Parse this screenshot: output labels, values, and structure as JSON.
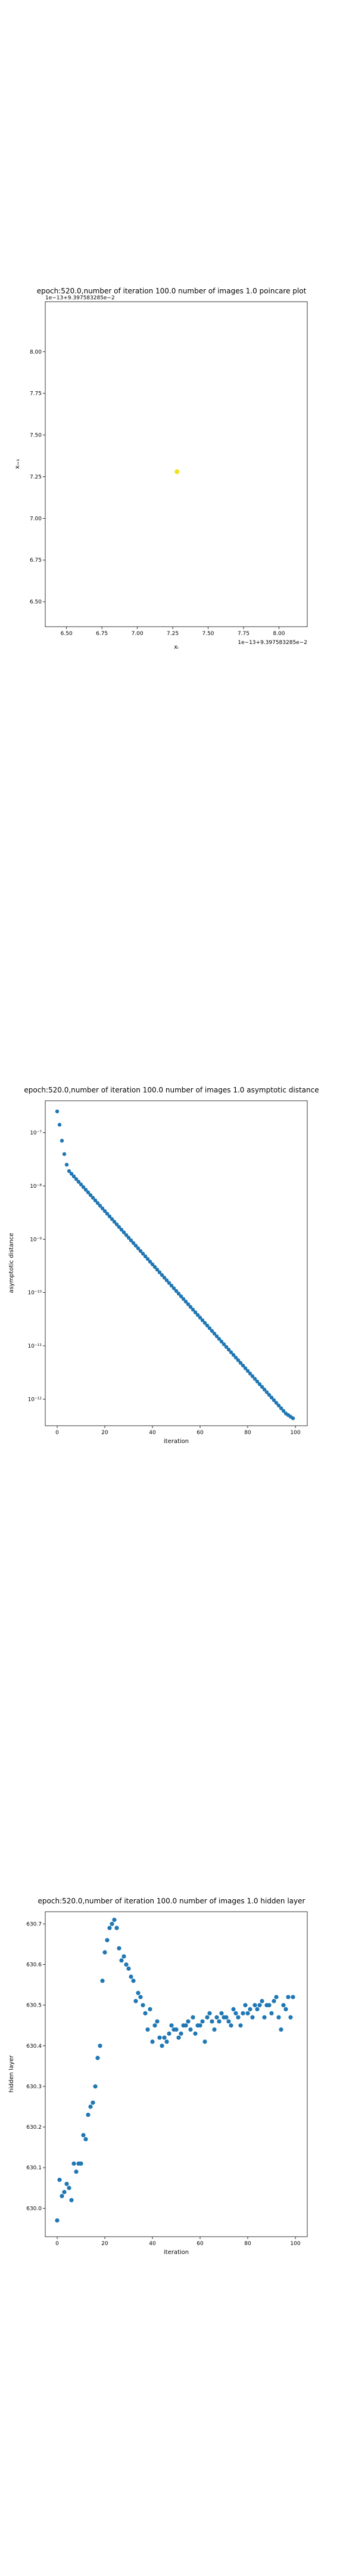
{
  "colors": {
    "scatter": "#1f77b4",
    "poincare_point": "#f2e01e",
    "axes": "#000000",
    "background": "#ffffff"
  },
  "chart_data": [
    {
      "type": "scatter",
      "title": "epoch:520.0,number of iteration 100.0 number of images 1.0 poincare plot",
      "xlabel": "xᵢ",
      "ylabel": "xᵢ₊₁",
      "x_offset_label": "1e−13+9.397583285e−2",
      "y_offset_label": "1e−13+9.397583285e−2",
      "xlim": [
        6.35,
        8.2
      ],
      "ylim": [
        6.35,
        8.3
      ],
      "xticks": [
        6.5,
        6.75,
        7.0,
        7.25,
        7.5,
        7.75,
        8.0
      ],
      "xtick_labels": [
        "6.50",
        "6.75",
        "7.00",
        "7.25",
        "7.50",
        "7.75",
        "8.00"
      ],
      "yticks": [
        6.5,
        6.75,
        7.0,
        7.25,
        7.5,
        7.75,
        8.0
      ],
      "ytick_labels": [
        "6.50",
        "6.75",
        "7.00",
        "7.25",
        "7.50",
        "7.75",
        "8.00"
      ],
      "points": [
        {
          "x": 7.28,
          "y": 7.28
        }
      ]
    },
    {
      "type": "scatter",
      "title": "epoch:520.0,number of iteration 100.0  number of images 1.0 asymptotic distance",
      "xlabel": "iteration",
      "ylabel": "asymptotic distance",
      "yscale": "log",
      "xlim": [
        -5,
        105
      ],
      "ylim_log10": [
        -12.5,
        -6.4
      ],
      "xticks": [
        0,
        20,
        40,
        60,
        80,
        100
      ],
      "xtick_labels": [
        "0",
        "20",
        "40",
        "60",
        "80",
        "100"
      ],
      "yticks_log10": [
        -7,
        -8,
        -9,
        -10,
        -11,
        -12
      ],
      "ytick_labels": [
        "10⁻⁷",
        "10⁻⁸",
        "10⁻⁹",
        "10⁻¹⁰",
        "10⁻¹¹",
        "10⁻¹²"
      ],
      "x": [
        0,
        1,
        2,
        3,
        4,
        5,
        6,
        7,
        8,
        9,
        10,
        11,
        12,
        13,
        14,
        15,
        16,
        17,
        18,
        19,
        20,
        21,
        22,
        23,
        24,
        25,
        26,
        27,
        28,
        29,
        30,
        31,
        32,
        33,
        34,
        35,
        36,
        37,
        38,
        39,
        40,
        41,
        42,
        43,
        44,
        45,
        46,
        47,
        48,
        49,
        50,
        51,
        52,
        53,
        54,
        55,
        56,
        57,
        58,
        59,
        60,
        61,
        62,
        63,
        64,
        65,
        66,
        67,
        68,
        69,
        70,
        71,
        72,
        73,
        74,
        75,
        76,
        77,
        78,
        79,
        80,
        81,
        82,
        83,
        84,
        85,
        86,
        87,
        88,
        89,
        90,
        91,
        92,
        93,
        94,
        95,
        96,
        97,
        98,
        99
      ],
      "log10_y": [
        -6.6,
        -6.85,
        -7.15,
        -7.4,
        -7.6,
        -7.72,
        -7.77,
        -7.82,
        -7.87,
        -7.92,
        -7.97,
        -8.02,
        -8.07,
        -8.12,
        -8.17,
        -8.22,
        -8.27,
        -8.32,
        -8.37,
        -8.42,
        -8.47,
        -8.52,
        -8.57,
        -8.62,
        -8.67,
        -8.72,
        -8.77,
        -8.82,
        -8.87,
        -8.92,
        -8.97,
        -9.02,
        -9.07,
        -9.12,
        -9.17,
        -9.22,
        -9.27,
        -9.32,
        -9.37,
        -9.42,
        -9.47,
        -9.52,
        -9.57,
        -9.62,
        -9.67,
        -9.72,
        -9.77,
        -9.82,
        -9.87,
        -9.92,
        -9.97,
        -10.02,
        -10.07,
        -10.12,
        -10.17,
        -10.22,
        -10.27,
        -10.32,
        -10.37,
        -10.42,
        -10.47,
        -10.52,
        -10.57,
        -10.62,
        -10.67,
        -10.72,
        -10.77,
        -10.82,
        -10.87,
        -10.92,
        -10.97,
        -11.02,
        -11.07,
        -11.12,
        -11.17,
        -11.22,
        -11.27,
        -11.32,
        -11.37,
        -11.42,
        -11.47,
        -11.52,
        -11.57,
        -11.62,
        -11.67,
        -11.72,
        -11.77,
        -11.82,
        -11.87,
        -11.92,
        -11.97,
        -12.02,
        -12.07,
        -12.12,
        -12.17,
        -12.22,
        -12.27,
        -12.3,
        -12.33,
        -12.36
      ]
    },
    {
      "type": "scatter",
      "title": "epoch:520.0,number of iteration 100.0  number of images 1.0 hidden layer",
      "xlabel": "iteration",
      "ylabel": "hidden layer",
      "xlim": [
        -5,
        105
      ],
      "ylim": [
        629.93,
        630.73
      ],
      "xticks": [
        0,
        20,
        40,
        60,
        80,
        100
      ],
      "xtick_labels": [
        "0",
        "20",
        "40",
        "60",
        "80",
        "100"
      ],
      "yticks": [
        630.0,
        630.1,
        630.2,
        630.3,
        630.4,
        630.5,
        630.6,
        630.7
      ],
      "ytick_labels": [
        "630.0",
        "630.1",
        "630.2",
        "630.3",
        "630.4",
        "630.5",
        "630.6",
        "630.7"
      ],
      "x": [
        0,
        1,
        2,
        3,
        4,
        5,
        6,
        7,
        8,
        9,
        10,
        11,
        12,
        13,
        14,
        15,
        16,
        17,
        18,
        19,
        20,
        21,
        22,
        23,
        24,
        25,
        26,
        27,
        28,
        29,
        30,
        31,
        32,
        33,
        34,
        35,
        36,
        37,
        38,
        39,
        40,
        41,
        42,
        43,
        44,
        45,
        46,
        47,
        48,
        49,
        50,
        51,
        52,
        53,
        54,
        55,
        56,
        57,
        58,
        59,
        60,
        61,
        62,
        63,
        64,
        65,
        66,
        67,
        68,
        69,
        70,
        71,
        72,
        73,
        74,
        75,
        76,
        77,
        78,
        79,
        80,
        81,
        82,
        83,
        84,
        85,
        86,
        87,
        88,
        89,
        90,
        91,
        92,
        93,
        94,
        95,
        96,
        97,
        98,
        99
      ],
      "y": [
        629.97,
        630.07,
        630.03,
        630.04,
        630.06,
        630.05,
        630.02,
        630.11,
        630.09,
        630.11,
        630.11,
        630.18,
        630.17,
        630.23,
        630.25,
        630.26,
        630.3,
        630.37,
        630.4,
        630.56,
        630.63,
        630.66,
        630.69,
        630.7,
        630.71,
        630.69,
        630.64,
        630.61,
        630.62,
        630.6,
        630.59,
        630.57,
        630.56,
        630.51,
        630.53,
        630.52,
        630.5,
        630.48,
        630.44,
        630.49,
        630.41,
        630.45,
        630.46,
        630.42,
        630.4,
        630.42,
        630.41,
        630.43,
        630.45,
        630.44,
        630.44,
        630.42,
        630.43,
        630.45,
        630.45,
        630.46,
        630.44,
        630.47,
        630.43,
        630.45,
        630.45,
        630.46,
        630.41,
        630.47,
        630.48,
        630.46,
        630.44,
        630.47,
        630.46,
        630.48,
        630.47,
        630.47,
        630.46,
        630.45,
        630.49,
        630.48,
        630.47,
        630.45,
        630.48,
        630.5,
        630.48,
        630.49,
        630.47,
        630.5,
        630.49,
        630.5,
        630.51,
        630.47,
        630.5,
        630.5,
        630.48,
        630.51,
        630.52,
        630.47,
        630.44,
        630.5,
        630.49,
        630.52,
        630.47,
        630.52
      ]
    }
  ]
}
